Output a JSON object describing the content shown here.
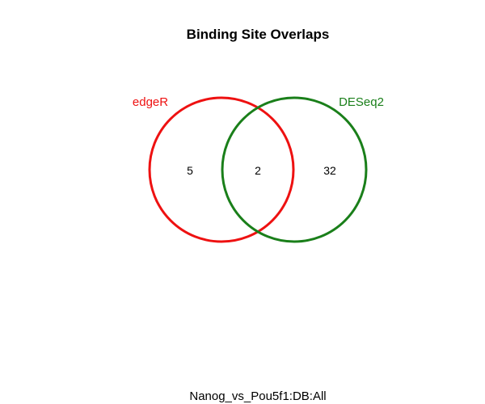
{
  "title": "Binding Site Overlaps",
  "subtitle": "Nanog_vs_Pou5f1:DB:All",
  "sets": [
    {
      "name": "edgeR",
      "color": "#ee1111"
    },
    {
      "name": "DESeq2",
      "color": "#1a7f1a"
    }
  ],
  "regions": {
    "edgeR_only": "5",
    "both": "2",
    "DESeq2_only": "32"
  }
}
